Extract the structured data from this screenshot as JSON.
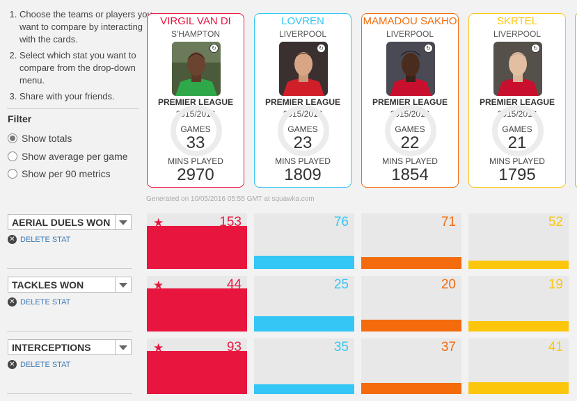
{
  "instructions": [
    "Choose the teams or players you want to compare by interacting with the cards.",
    "Select which stat you want to compare from the drop-down menu.",
    "Share with your friends."
  ],
  "filter": {
    "heading": "Filter",
    "options": [
      "Show totals",
      "Show average per game",
      "Show per 90 metrics"
    ],
    "selected": "Show totals"
  },
  "players": [
    {
      "name": "VIRGIL VAN DI",
      "club": "S'HAMPTON",
      "league": "PREMIER LEAGUE",
      "season": "2015/2016",
      "games_label": "GAMES",
      "games": "33",
      "mins_label": "MINS PLAYED",
      "mins": "2970",
      "color": "#e8163e"
    },
    {
      "name": "LOVREN",
      "club": "LIVERPOOL",
      "league": "PREMIER LEAGUE",
      "season": "2015/2016",
      "games_label": "GAMES",
      "games": "23",
      "mins_label": "MINS PLAYED",
      "mins": "1809",
      "color": "#34c6f4"
    },
    {
      "name": "MAMADOU SAKHO",
      "club": "LIVERPOOL",
      "league": "PREMIER LEAGUE",
      "season": "2015/2016",
      "games_label": "GAMES",
      "games": "22",
      "mins_label": "MINS PLAYED",
      "mins": "1854",
      "color": "#f36b0c"
    },
    {
      "name": "SKRTEL",
      "club": "LIVERPOOL",
      "league": "PREMIER LEAGUE",
      "season": "2015/2016",
      "games_label": "GAMES",
      "games": "21",
      "mins_label": "MINS PLAYED",
      "mins": "1795",
      "color": "#fcc60c"
    }
  ],
  "generated": "Generated on 10/05/2016 05:55 GMT at squawka.com",
  "delete_label": "DELETE STAT",
  "stats": [
    {
      "name": "AERIAL DUELS WON",
      "values": [
        "153",
        "76",
        "71",
        "52"
      ],
      "fill": [
        1.0,
        0.3,
        0.28,
        0.2
      ],
      "leader": 0
    },
    {
      "name": "TACKLES WON",
      "values": [
        "44",
        "25",
        "20",
        "19"
      ],
      "fill": [
        1.0,
        0.35,
        0.27,
        0.25
      ],
      "leader": 0
    },
    {
      "name": "INTERCEPTIONS",
      "values": [
        "93",
        "35",
        "37",
        "41"
      ],
      "fill": [
        1.0,
        0.23,
        0.26,
        0.28
      ],
      "leader": 0
    }
  ],
  "colors": {
    "background": "#f2f2f2",
    "next_card_border": "#8ac640",
    "link": "#3c7ab8"
  }
}
